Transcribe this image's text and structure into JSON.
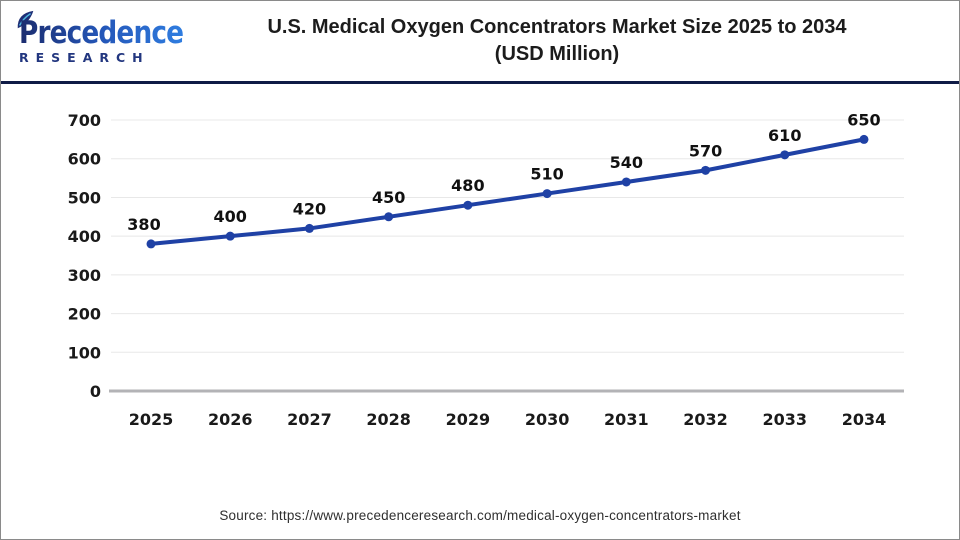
{
  "header": {
    "logo": {
      "name": "Precedence",
      "subtitle": "RESEARCH"
    },
    "title_line1": "U.S. Medical Oxygen Concentrators Market Size 2025 to 2034",
    "title_line2": "(USD Million)"
  },
  "chart_data": {
    "type": "line",
    "title": "U.S. Medical Oxygen Concentrators Market Size 2025 to 2034 (USD Million)",
    "x": [
      "2025",
      "2026",
      "2027",
      "2028",
      "2029",
      "2030",
      "2031",
      "2032",
      "2033",
      "2034"
    ],
    "series": [
      {
        "name": "U.S. Medical Oxygen Concentrators Market Size (USD Million)",
        "values": [
          380,
          400,
          420,
          450,
          480,
          510,
          540,
          570,
          610,
          650
        ]
      }
    ],
    "ylabel": "",
    "xlabel": "",
    "ylim": [
      0,
      700
    ],
    "ytick_interval": 100,
    "grid": true,
    "legend": false,
    "data_labels": true,
    "line_color": "#1f41a5",
    "point_color": "#1f41a5",
    "grid_color": "#e8e8e8",
    "axis_color": "#b3b3b6",
    "label_color": "#111111"
  },
  "footer": {
    "source": "Source: https://www.precedenceresearch.com/medical-oxygen-concentrators-market"
  }
}
